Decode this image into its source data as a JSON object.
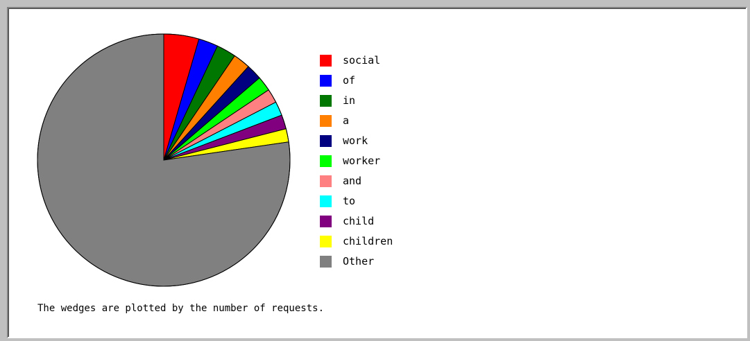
{
  "chart_data": {
    "type": "pie",
    "slices": [
      {
        "label": "social",
        "value": 4.5,
        "color": "#ff0000"
      },
      {
        "label": "of",
        "value": 2.5,
        "color": "#0000ff"
      },
      {
        "label": "in",
        "value": 2.5,
        "color": "#007700"
      },
      {
        "label": "a",
        "value": 2.2,
        "color": "#ff8000"
      },
      {
        "label": "work",
        "value": 2.0,
        "color": "#000080"
      },
      {
        "label": "worker",
        "value": 1.9,
        "color": "#00ff00"
      },
      {
        "label": "and",
        "value": 1.8,
        "color": "#ff8080"
      },
      {
        "label": "to",
        "value": 1.8,
        "color": "#00ffff"
      },
      {
        "label": "child",
        "value": 1.8,
        "color": "#800080"
      },
      {
        "label": "children",
        "value": 1.7,
        "color": "#ffff00"
      },
      {
        "label": "Other",
        "value": 77.3,
        "color": "#808080"
      }
    ],
    "start_angle_deg": 0,
    "direction": "clockwise",
    "legend_position": "right",
    "caption": "The wedges are plotted by the number of requests."
  }
}
